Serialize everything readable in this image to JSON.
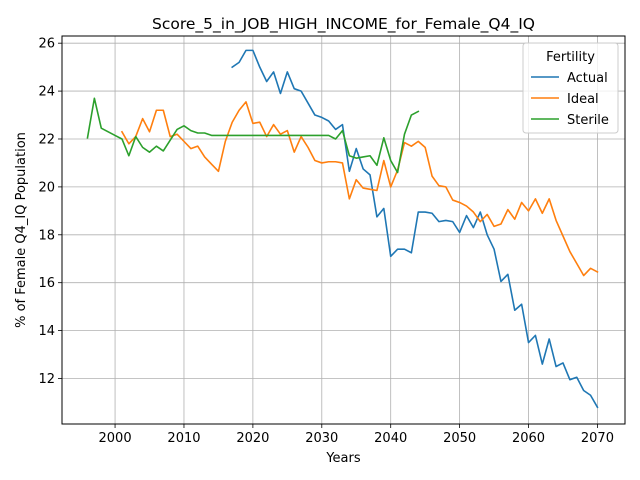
{
  "chart_data": {
    "type": "line",
    "title": "Score_5_in_JOB_HIGH_INCOME_for_Female_Q4_IQ",
    "xlabel": "Years",
    "ylabel": "% of Female Q4_IQ Population",
    "xlim": [
      1992.3,
      2074.0
    ],
    "ylim": [
      10.1,
      26.3
    ],
    "xticks": [
      2000,
      2010,
      2020,
      2030,
      2040,
      2050,
      2060,
      2070
    ],
    "yticks": [
      12,
      14,
      16,
      18,
      20,
      22,
      24,
      26
    ],
    "grid": true,
    "legend": {
      "title": "Fertility",
      "position": "top-right"
    },
    "series": [
      {
        "name": "Actual",
        "color": "#1f77b4",
        "x": [
          2017,
          2018,
          2019,
          2020,
          2021,
          2022,
          2023,
          2024,
          2025,
          2026,
          2027,
          2028,
          2029,
          2030,
          2031,
          2032,
          2033,
          2034,
          2035,
          2036,
          2037,
          2038,
          2039,
          2040,
          2041,
          2042,
          2043,
          2044,
          2045,
          2046,
          2047,
          2048,
          2049,
          2050,
          2051,
          2052,
          2053,
          2054,
          2055,
          2056,
          2057,
          2058,
          2059,
          2060,
          2061,
          2062,
          2063,
          2064,
          2065,
          2066,
          2067,
          2068,
          2069,
          2070
        ],
        "y": [
          25.0,
          25.2,
          25.7,
          25.7,
          25.0,
          24.4,
          24.8,
          23.9,
          24.8,
          24.1,
          24.0,
          23.5,
          23.0,
          22.9,
          22.75,
          22.4,
          22.6,
          20.65,
          21.6,
          20.75,
          20.5,
          18.75,
          19.1,
          17.1,
          17.4,
          17.4,
          17.25,
          18.95,
          18.95,
          18.9,
          18.55,
          18.6,
          18.55,
          18.1,
          18.8,
          18.3,
          18.95,
          18.0,
          17.4,
          16.05,
          16.35,
          14.85,
          15.1,
          13.5,
          13.8,
          12.6,
          13.65,
          12.5,
          12.65,
          11.95,
          12.05,
          11.5,
          11.3,
          10.8
        ]
      },
      {
        "name": "Ideal",
        "color": "#ff7f0e",
        "x": [
          2001,
          2002,
          2003,
          2004,
          2005,
          2006,
          2007,
          2008,
          2009,
          2010,
          2011,
          2012,
          2013,
          2014,
          2015,
          2016,
          2017,
          2018,
          2019,
          2020,
          2021,
          2022,
          2023,
          2024,
          2025,
          2026,
          2027,
          2028,
          2029,
          2030,
          2031,
          2032,
          2033,
          2034,
          2035,
          2036,
          2037,
          2038,
          2039,
          2040,
          2041,
          2042,
          2043,
          2044,
          2045,
          2046,
          2047,
          2048,
          2049,
          2050,
          2051,
          2052,
          2053,
          2054,
          2055,
          2056,
          2057,
          2058,
          2059,
          2060,
          2061,
          2062,
          2063,
          2064,
          2065,
          2066,
          2067,
          2068,
          2069,
          2070
        ],
        "y": [
          22.3,
          21.8,
          22.1,
          22.85,
          22.3,
          23.2,
          23.2,
          22.1,
          22.2,
          21.9,
          21.6,
          21.7,
          21.25,
          20.95,
          20.65,
          21.9,
          22.7,
          23.2,
          23.55,
          22.65,
          22.7,
          22.1,
          22.6,
          22.2,
          22.35,
          21.45,
          22.1,
          21.65,
          21.1,
          21.0,
          21.05,
          21.05,
          21.0,
          19.5,
          20.3,
          19.95,
          19.9,
          19.85,
          21.1,
          20.0,
          20.7,
          21.85,
          21.7,
          21.9,
          21.65,
          20.45,
          20.05,
          20.0,
          19.45,
          19.35,
          19.2,
          18.95,
          18.55,
          18.85,
          18.35,
          18.45,
          19.05,
          18.65,
          19.35,
          19.0,
          19.5,
          18.9,
          19.5,
          18.6,
          17.95,
          17.3,
          16.8,
          16.3,
          16.6,
          16.45
        ]
      },
      {
        "name": "Sterile",
        "color": "#2ca02c",
        "x": [
          1996,
          1997,
          1998,
          1999,
          2000,
          2001,
          2002,
          2003,
          2004,
          2005,
          2006,
          2007,
          2008,
          2009,
          2010,
          2011,
          2012,
          2013,
          2014,
          2015,
          2016,
          2017,
          2018,
          2019,
          2020,
          2021,
          2022,
          2023,
          2024,
          2025,
          2026,
          2027,
          2028,
          2029,
          2030,
          2031,
          2032,
          2033,
          2034,
          2035,
          2036,
          2037,
          2038,
          2039,
          2040,
          2041,
          2042,
          2043,
          2044
        ],
        "y": [
          22.05,
          23.7,
          22.45,
          22.3,
          22.15,
          22.0,
          21.3,
          22.1,
          21.65,
          21.45,
          21.7,
          21.5,
          21.95,
          22.4,
          22.55,
          22.35,
          22.25,
          22.25,
          22.15,
          22.15,
          22.15,
          22.15,
          22.15,
          22.15,
          22.15,
          22.15,
          22.15,
          22.15,
          22.15,
          22.15,
          22.15,
          22.15,
          22.15,
          22.15,
          22.15,
          22.15,
          22.0,
          22.35,
          21.3,
          21.2,
          21.25,
          21.3,
          20.9,
          22.05,
          21.1,
          20.6,
          22.2,
          23.0,
          23.15
        ]
      }
    ]
  }
}
